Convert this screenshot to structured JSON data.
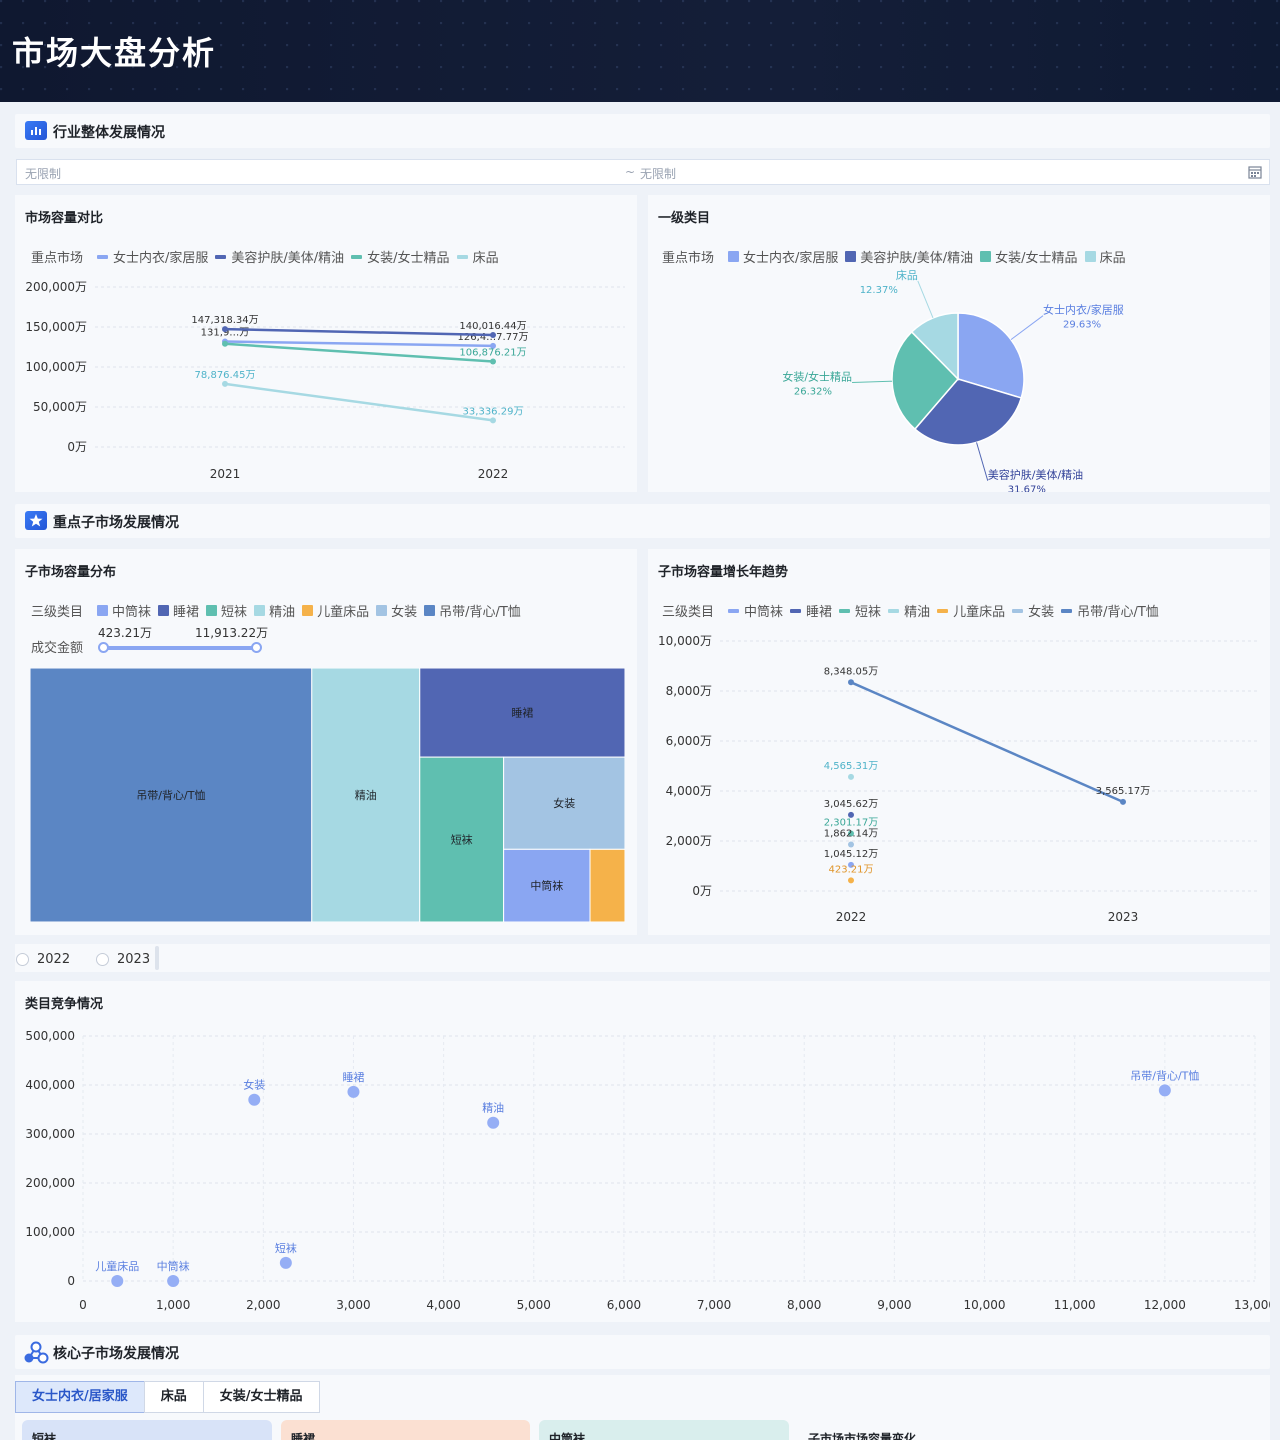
{
  "header": {
    "title": "市场大盘分析"
  },
  "section1": {
    "title": "行业整体发展情况"
  },
  "date_filter": {
    "start": "无限制",
    "sep": "~",
    "end": "无限制"
  },
  "market_compare": {
    "title": "市场容量对比",
    "legend_label": "重点市场",
    "legend": [
      "女士内衣/家居服",
      "美容护肤/美体/精油",
      "女装/女士精品",
      "床品"
    ],
    "colors": [
      "#8aa6f2",
      "#5166b3",
      "#5fbfb0",
      "#a6d9e3"
    ]
  },
  "level1": {
    "title": "一级类目",
    "legend_label": "重点市场",
    "legend": [
      "女士内衣/家居服",
      "美容护肤/美体/精油",
      "女装/女士精品",
      "床品"
    ]
  },
  "section2": {
    "title": "重点子市场发展情况"
  },
  "sub_dist": {
    "title": "子市场容量分布",
    "legend_label": "三级类目",
    "legend": [
      "中筒袜",
      "睡裙",
      "短袜",
      "精油",
      "儿童床品",
      "女装",
      "吊带/背心/T恤"
    ],
    "colors": [
      "#8aa6f2",
      "#5166b3",
      "#5fbfb0",
      "#a6d9e3",
      "#f5b24a",
      "#a3c4e3",
      "#5b86c4"
    ],
    "slider_label": "成交金额",
    "slider_min": "423.21万",
    "slider_max": "11,913.22万"
  },
  "sub_trend": {
    "title": "子市场容量增长年趋势",
    "legend_label": "三级类目",
    "legend": [
      "中筒袜",
      "睡裙",
      "短袜",
      "精油",
      "儿童床品",
      "女装",
      "吊带/背心/T恤"
    ]
  },
  "year_radio": [
    "2022",
    "2023"
  ],
  "competition": {
    "title": "类目竞争情况"
  },
  "section3": {
    "title": "核心子市场发展情况"
  },
  "core_tabs": [
    "女士内衣/居家服",
    "床品",
    "女装/女士精品"
  ],
  "mini_cards": [
    "短袜",
    "睡裙",
    "中筒袜",
    "子市场市场容量变化"
  ],
  "chart_data": [
    {
      "type": "line",
      "x": [
        "2021",
        "2022"
      ],
      "yticks": [
        "0万",
        "50,000万",
        "100,000万",
        "150,000万",
        "200,000万"
      ],
      "ylim": [
        0,
        200000
      ],
      "series": [
        {
          "name": "女士内衣/家居服",
          "values": [
            131900,
            126400
          ],
          "labels": [
            "131,9…万",
            "126,4…7.77万"
          ]
        },
        {
          "name": "美容护肤/美体/精油",
          "values": [
            147318.34,
            140016.44
          ],
          "labels": [
            "147,318.34万",
            "140,016.44万"
          ]
        },
        {
          "name": "女装/女士精品",
          "values": [
            129000,
            106876.21
          ],
          "labels": [
            "",
            "106,876.21万"
          ]
        },
        {
          "name": "床品",
          "values": [
            78876.45,
            33336.29
          ],
          "labels": [
            "78,876.45万",
            "33,336.29万"
          ]
        }
      ]
    },
    {
      "type": "pie",
      "slices": [
        {
          "name": "女士内衣/家居服",
          "value": 29.63,
          "label": "29.63%"
        },
        {
          "name": "美容护肤/美体/精油",
          "value": 31.67,
          "label": "31.67%"
        },
        {
          "name": "女装/女士精品",
          "value": 26.32,
          "label": "26.32%"
        },
        {
          "name": "床品",
          "value": 12.37,
          "label": "12.37%"
        }
      ]
    },
    {
      "type": "treemap",
      "cells": [
        {
          "name": "吊带/背心/T恤",
          "value": 11913.22
        },
        {
          "name": "精油",
          "value": 4565.31
        },
        {
          "name": "睡裙",
          "value": 3045.62
        },
        {
          "name": "短袜",
          "value": 2301.17
        },
        {
          "name": "女装",
          "value": 1862.14
        },
        {
          "name": "中筒袜",
          "value": 1045.12
        },
        {
          "name": "儿童床品",
          "value": 423.21
        }
      ]
    },
    {
      "type": "line",
      "x": [
        "2022",
        "2023"
      ],
      "yticks": [
        "0万",
        "2,000万",
        "4,000万",
        "6,000万",
        "8,000万",
        "10,000万"
      ],
      "ylim": [
        0,
        10000
      ],
      "series": [
        {
          "name": "吊带/背心/T恤",
          "values": [
            8348.05,
            3565.17
          ],
          "labels": [
            "8,348.05万",
            "3,565.17万"
          ]
        },
        {
          "name": "精油",
          "values": [
            4565.31,
            null
          ],
          "labels": [
            "4,565.31万",
            ""
          ]
        },
        {
          "name": "睡裙",
          "values": [
            3045.62,
            null
          ],
          "labels": [
            "3,045.62万",
            ""
          ]
        },
        {
          "name": "短袜",
          "values": [
            2301.17,
            null
          ],
          "labels": [
            "2,301.17万",
            ""
          ]
        },
        {
          "name": "女装",
          "values": [
            1862.14,
            null
          ],
          "labels": [
            "1,862.14万",
            ""
          ]
        },
        {
          "name": "中筒袜",
          "values": [
            1045.12,
            null
          ],
          "labels": [
            "1,045.12万",
            ""
          ]
        },
        {
          "name": "儿童床品",
          "values": [
            423.21,
            null
          ],
          "labels": [
            "423.21万",
            ""
          ]
        }
      ]
    },
    {
      "type": "scatter",
      "xticks": [
        "0",
        "1,000",
        "2,000",
        "3,000",
        "4,000",
        "5,000",
        "6,000",
        "7,000",
        "8,000",
        "9,000",
        "10,000",
        "11,000",
        "12,000",
        "13,000"
      ],
      "yticks": [
        "0",
        "100,000",
        "200,000",
        "300,000",
        "400,000",
        "500,000"
      ],
      "xlim": [
        0,
        13000
      ],
      "ylim": [
        0,
        500000
      ],
      "points": [
        {
          "name": "儿童床品",
          "x": 380,
          "y": 0
        },
        {
          "name": "中筒袜",
          "x": 1000,
          "y": 0
        },
        {
          "name": "女装",
          "x": 1900,
          "y": 370000
        },
        {
          "name": "短袜",
          "x": 2250,
          "y": 37000
        },
        {
          "name": "睡裙",
          "x": 3000,
          "y": 386000
        },
        {
          "name": "精油",
          "x": 4550,
          "y": 323000
        },
        {
          "name": "吊带/背心/T恤",
          "x": 12000,
          "y": 389000
        }
      ]
    }
  ]
}
